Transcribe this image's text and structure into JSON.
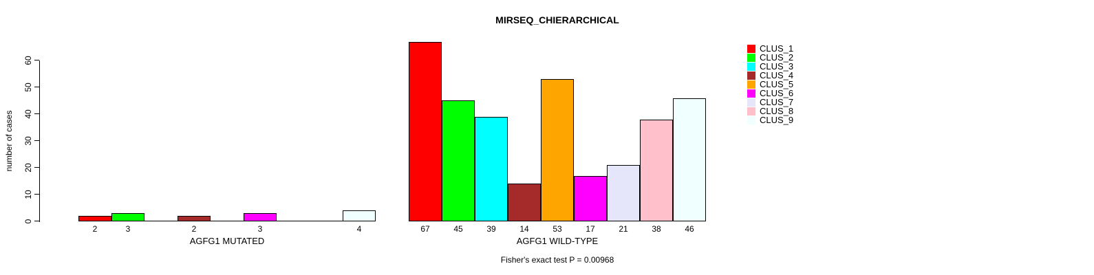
{
  "figure": {
    "title": "MIRSEQ_CHIERARCHICAL",
    "ylabel": "number of cases",
    "footnote": "Fisher's exact test P = 0.00968"
  },
  "legend": {
    "entries": [
      {
        "label": "CLUS_1",
        "color": "#FF0000"
      },
      {
        "label": "CLUS_2",
        "color": "#00FF00"
      },
      {
        "label": "CLUS_3",
        "color": "#00FFFF"
      },
      {
        "label": "CLUS_4",
        "color": "#A52A2A"
      },
      {
        "label": "CLUS_5",
        "color": "#FFA500"
      },
      {
        "label": "CLUS_6",
        "color": "#FF00FF"
      },
      {
        "label": "CLUS_7",
        "color": "#E6E6FA"
      },
      {
        "label": "CLUS_8",
        "color": "#FFC0CB"
      },
      {
        "label": "CLUS_9",
        "color": "#F0FFFF"
      }
    ]
  },
  "chart_data": {
    "type": "bar",
    "title": "MIRSEQ_CHIERARCHICAL",
    "ylabel": "number of cases",
    "xlabel": "",
    "ylim": [
      0,
      60
    ],
    "yticks": [
      0,
      10,
      20,
      30,
      40,
      50,
      60
    ],
    "grid": false,
    "legend_position": "top-right",
    "categories": [
      "CLUS_1",
      "CLUS_2",
      "CLUS_3",
      "CLUS_4",
      "CLUS_5",
      "CLUS_6",
      "CLUS_7",
      "CLUS_8",
      "CLUS_9"
    ],
    "colors": [
      "#FF0000",
      "#00FF00",
      "#00FFFF",
      "#A52A2A",
      "#FFA500",
      "#FF00FF",
      "#E6E6FA",
      "#FFC0CB",
      "#F0FFFF"
    ],
    "groups": [
      {
        "label": "AGFG1 MUTATED",
        "values": [
          2,
          3,
          0,
          2,
          0,
          3,
          0,
          0,
          4
        ]
      },
      {
        "label": "AGFG1 WILD-TYPE",
        "values": [
          67,
          45,
          39,
          14,
          53,
          17,
          21,
          38,
          46
        ]
      }
    ],
    "annotation": "Fisher's exact test P = 0.00968"
  }
}
